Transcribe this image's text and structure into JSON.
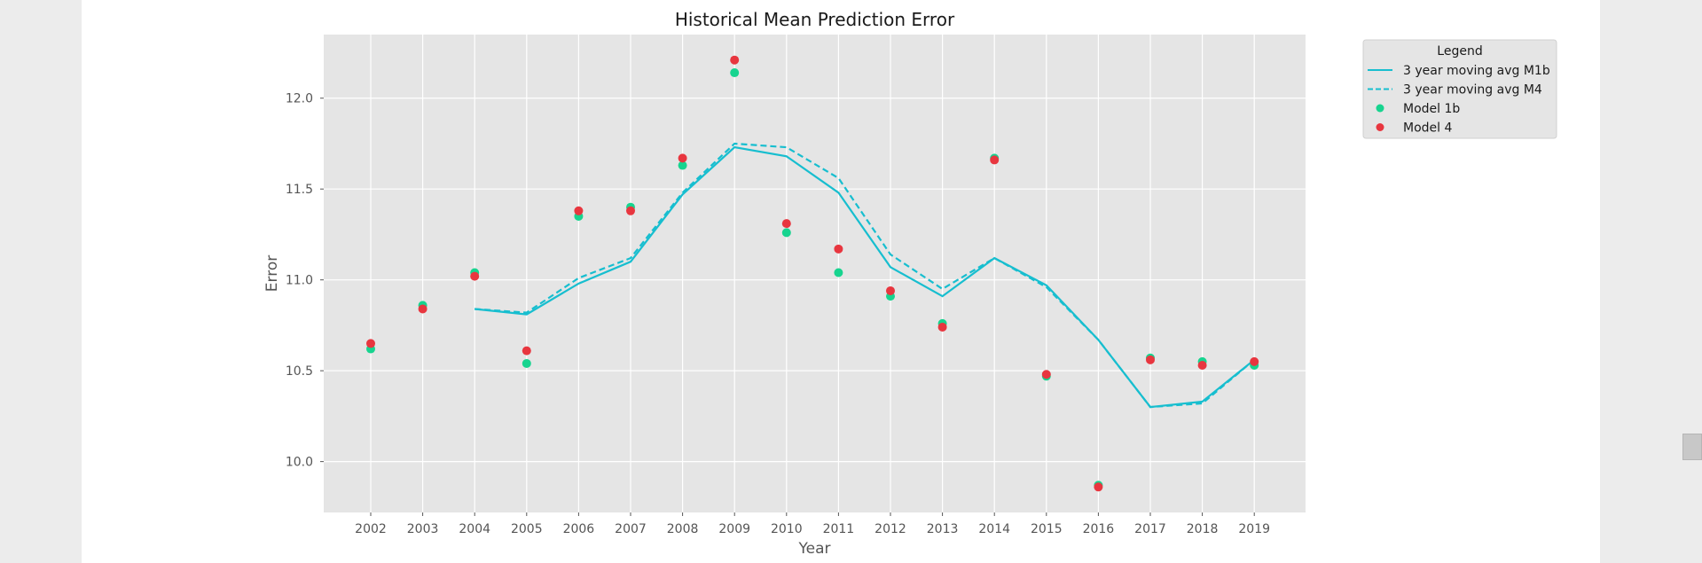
{
  "chart_data": {
    "type": "line",
    "title": "Historical Mean Prediction Error",
    "xlabel": "Year",
    "ylabel": "Error",
    "x": [
      2002,
      2003,
      2004,
      2005,
      2006,
      2007,
      2008,
      2009,
      2010,
      2011,
      2012,
      2013,
      2014,
      2015,
      2016,
      2017,
      2018,
      2019
    ],
    "ylim": [
      9.72,
      12.35
    ],
    "yticks": [
      "10.0",
      "10.5",
      "11.0",
      "11.5",
      "12.0"
    ],
    "grid": true,
    "legend_title": "Legend",
    "legend_position": "outside-top-right",
    "series": [
      {
        "name": "3 year moving avg M1b",
        "kind": "line",
        "style": "solid",
        "color": "#17becf",
        "values": [
          null,
          null,
          10.84,
          10.81,
          10.98,
          11.1,
          11.47,
          11.73,
          11.68,
          11.48,
          11.07,
          10.91,
          11.12,
          10.97,
          10.67,
          10.3,
          10.33,
          10.56
        ]
      },
      {
        "name": "3 year moving avg M4",
        "kind": "line",
        "style": "dashed",
        "color": "#17becf",
        "values": [
          null,
          null,
          10.84,
          10.82,
          11.01,
          11.12,
          11.48,
          11.75,
          11.73,
          11.56,
          11.14,
          10.95,
          11.12,
          10.96,
          10.67,
          10.3,
          10.32,
          10.56
        ]
      },
      {
        "name": "Model 1b",
        "kind": "scatter",
        "color": "#17d48f",
        "values": [
          10.62,
          10.86,
          11.04,
          10.54,
          11.35,
          11.4,
          11.63,
          12.14,
          11.26,
          11.04,
          10.91,
          10.76,
          11.67,
          10.47,
          9.87,
          10.57,
          10.55,
          10.53
        ]
      },
      {
        "name": "Model 4",
        "kind": "scatter",
        "color": "#e8363f",
        "values": [
          10.65,
          10.84,
          11.02,
          10.61,
          11.38,
          11.38,
          11.67,
          12.21,
          11.31,
          11.17,
          10.94,
          10.74,
          11.66,
          10.48,
          9.86,
          10.56,
          10.53,
          10.55
        ]
      }
    ]
  }
}
